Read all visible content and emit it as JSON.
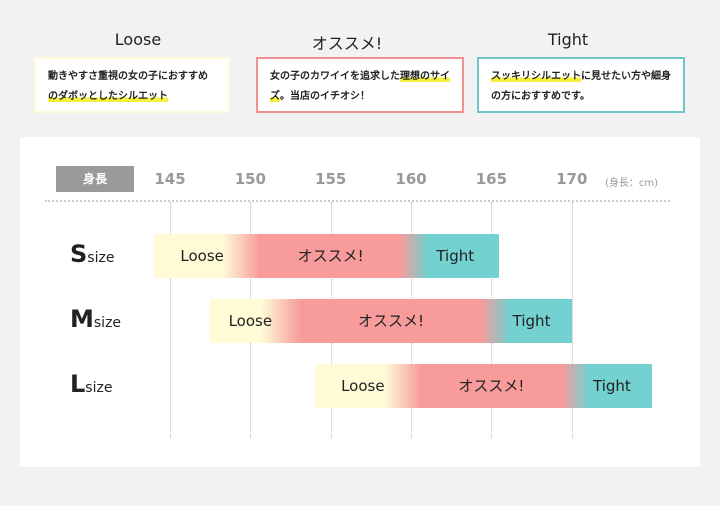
{
  "legend": [
    {
      "title": "Loose",
      "text_pre": "動きやすさ重視の女の子におすすめ",
      "text_hl": "のダボッとしたシルエット",
      "text_post": "",
      "color": "#fefbd6"
    },
    {
      "title": "オススメ!",
      "text_pre": "女の子のカワイイを追求した",
      "text_hl": "理想のサイズ",
      "text_post": "。当店のイチオシ！",
      "color": "#f08f8f"
    },
    {
      "title": "Tight",
      "text_pre": "",
      "text_hl": "スッキリシルエット",
      "text_post": "に見せたい方や細身の方におすすめです。",
      "color": "#6fc5c5"
    }
  ],
  "chart_data": {
    "type": "range-bar",
    "axis_badge": "身長",
    "unit_label": "(身長：cm)",
    "x_ticks": [
      145,
      150,
      155,
      160,
      165,
      170
    ],
    "xlim": [
      145,
      175
    ],
    "grid": true,
    "colors": {
      "Loose": "#fefbd6",
      "オススメ!": "#f79b9b",
      "Tight": "#73d1d0"
    },
    "rows": [
      {
        "size": "S",
        "suffix": "size",
        "segments": [
          {
            "label": "Loose",
            "from": 144,
            "to": 150
          },
          {
            "label": "オススメ!",
            "from": 150,
            "to": 160
          },
          {
            "label": "Tight",
            "from": 160,
            "to": 165.5
          }
        ]
      },
      {
        "size": "M",
        "suffix": "size",
        "segments": [
          {
            "label": "Loose",
            "from": 147.5,
            "to": 152.5
          },
          {
            "label": "オススメ!",
            "from": 152.5,
            "to": 165
          },
          {
            "label": "Tight",
            "from": 165,
            "to": 170
          }
        ]
      },
      {
        "size": "L",
        "suffix": "size",
        "segments": [
          {
            "label": "Loose",
            "from": 154,
            "to": 160
          },
          {
            "label": "オススメ!",
            "from": 160,
            "to": 170
          },
          {
            "label": "Tight",
            "from": 170,
            "to": 175
          }
        ]
      }
    ]
  }
}
